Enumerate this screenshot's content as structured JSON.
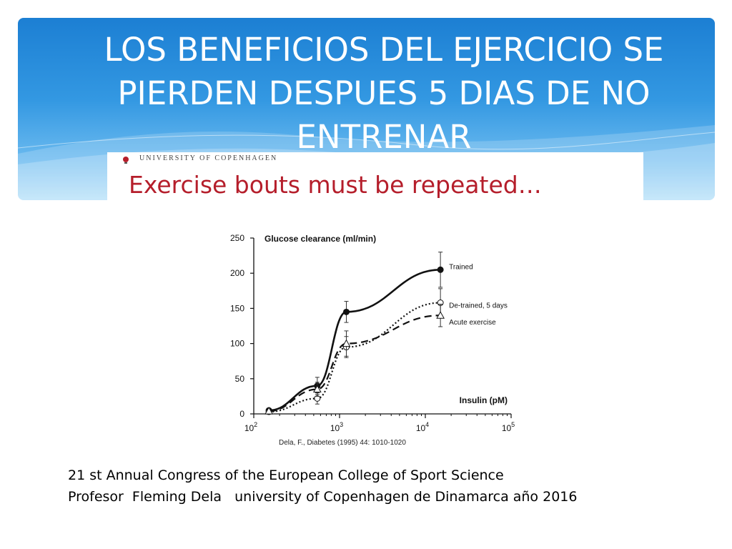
{
  "slide": {
    "title": "LOS BENEFICIOS DEL EJERCICIO SE PIERDEN DESPUES 5 DIAS DE NO ENTRENAR",
    "accent_color": "#2a8ddc",
    "footer_lines": [
      "21 st Annual Congress of the European College of Sport Science",
      "Profesor  Fleming Dela   university of Copenhagen de Dinamarca año 2016"
    ]
  },
  "figure": {
    "institution": "UNIVERSITY OF COPENHAGEN",
    "heading": "Exercise bouts must be repeated…",
    "heading_color": "#b51e2b",
    "citation": "Dela, F., Diabetes (1995) 44: 1010-1020"
  },
  "chart_data": {
    "type": "line",
    "title": "",
    "ylabel": "Glucose clearance (ml/min)",
    "xlabel": "Insulin (pM)",
    "x_scale": "log",
    "xlim": [
      100,
      100000
    ],
    "ylim": [
      0,
      250
    ],
    "x_ticks": [
      {
        "value": 100,
        "base": "10",
        "exp": "2"
      },
      {
        "value": 1000,
        "base": "10",
        "exp": "3"
      },
      {
        "value": 10000,
        "base": "10",
        "exp": "4"
      },
      {
        "value": 100000,
        "base": "10",
        "exp": "5"
      }
    ],
    "y_ticks": [
      0,
      50,
      100,
      150,
      200,
      250
    ],
    "grid": false,
    "series": [
      {
        "name": "Trained",
        "line_style": "solid",
        "marker": "filled-circle",
        "x": [
          150,
          550,
          1200,
          15000
        ],
        "y": [
          5,
          40,
          145,
          205
        ],
        "error": [
          0,
          12,
          15,
          25
        ],
        "label_value_x": 15000,
        "label_value_y": 210
      },
      {
        "name": "De-trained, 5 days",
        "line_style": "dotted",
        "marker": "open-circle",
        "x": [
          150,
          550,
          1200,
          15000
        ],
        "y": [
          3,
          22,
          95,
          158
        ],
        "error": [
          0,
          8,
          15,
          20
        ],
        "label_value_x": 15000,
        "label_value_y": 155
      },
      {
        "name": "Acute exercise",
        "line_style": "dashed",
        "marker": "open-triangle",
        "x": [
          150,
          550,
          1200,
          15000
        ],
        "y": [
          4,
          35,
          100,
          140
        ],
        "error": [
          0,
          10,
          18,
          16
        ],
        "label_value_x": 15000,
        "label_value_y": 131
      }
    ]
  }
}
